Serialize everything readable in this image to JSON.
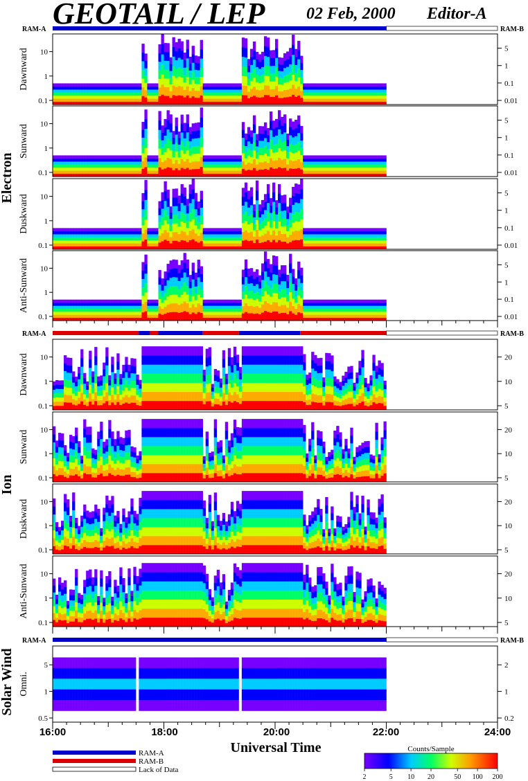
{
  "header": {
    "title": "GEOTAIL / LEP",
    "date": "02 Feb, 2000",
    "editor": "Editor-A"
  },
  "groups": [
    {
      "label": "Electron",
      "ram_left": "RAM-A",
      "ram_right": "RAM-B",
      "ram_segments": [
        {
          "from": 16.0,
          "to": 22.0,
          "mode": "A"
        },
        {
          "from": 22.0,
          "to": 24.0,
          "mode": "none"
        }
      ],
      "panels": [
        {
          "label": "Dawnward",
          "left_ticks": [
            "0.1",
            "1",
            "10"
          ],
          "right_ticks": [
            "0.01",
            "0.1",
            "1",
            "5"
          ]
        },
        {
          "label": "Sunward",
          "left_ticks": [
            "0.1",
            "1",
            "10"
          ],
          "right_ticks": [
            "0.01",
            "0.1",
            "1",
            "5"
          ]
        },
        {
          "label": "Duskward",
          "left_ticks": [
            "0.1",
            "1",
            "10"
          ],
          "right_ticks": [
            "0.01",
            "0.1",
            "1",
            "5"
          ]
        },
        {
          "label": "Anti-Sunward",
          "left_ticks": [
            "0.1",
            "1",
            "10"
          ],
          "right_ticks": [
            "0.01",
            "0.1",
            "1",
            "5"
          ]
        }
      ]
    },
    {
      "label": "Ion",
      "ram_left": "RAM-A",
      "ram_right": "RAM-B",
      "ram_segments": [
        {
          "from": 16.0,
          "to": 17.55,
          "mode": "B"
        },
        {
          "from": 17.55,
          "to": 17.75,
          "mode": "A"
        },
        {
          "from": 17.75,
          "to": 17.9,
          "mode": "B"
        },
        {
          "from": 17.9,
          "to": 18.7,
          "mode": "A"
        },
        {
          "from": 18.7,
          "to": 19.35,
          "mode": "B"
        },
        {
          "from": 19.35,
          "to": 20.45,
          "mode": "A"
        },
        {
          "from": 20.45,
          "to": 22.0,
          "mode": "B"
        },
        {
          "from": 22.0,
          "to": 24.0,
          "mode": "none"
        }
      ],
      "panels": [
        {
          "label": "Dawnward",
          "left_ticks": [
            "0.1",
            "1",
            "10"
          ],
          "right_ticks": [
            "5",
            "10",
            "20"
          ]
        },
        {
          "label": "Sunward",
          "left_ticks": [
            "0.1",
            "1",
            "10"
          ],
          "right_ticks": [
            "5",
            "10",
            "20"
          ]
        },
        {
          "label": "Duskward",
          "left_ticks": [
            "0.1",
            "1",
            "10"
          ],
          "right_ticks": [
            "5",
            "10",
            "20"
          ]
        },
        {
          "label": "Anti-Sunward",
          "left_ticks": [
            "0.1",
            "1",
            "10"
          ],
          "right_ticks": [
            "5",
            "10",
            "20"
          ]
        }
      ]
    },
    {
      "label": "Solar Wind",
      "ram_left": "RAM-A",
      "ram_right": "RAM-B",
      "ram_segments": [
        {
          "from": 16.0,
          "to": 22.0,
          "mode": "A"
        },
        {
          "from": 22.0,
          "to": 24.0,
          "mode": "none"
        }
      ],
      "panels": [
        {
          "label": "Omni.",
          "left_ticks": [
            "0.5",
            "1",
            "5"
          ],
          "right_ticks": [
            "0.2",
            "1",
            "2"
          ]
        }
      ]
    }
  ],
  "chart_data": {
    "type": "heatmap",
    "xlabel": "Universal Time",
    "x_ticks": [
      "16:00",
      "18:00",
      "20:00",
      "22:00",
      "24:00"
    ],
    "xlim": [
      16,
      24
    ],
    "data_end_hour": 22.0,
    "colorbar": {
      "title": "Counts/Sample",
      "ticks": [
        "2",
        "5",
        "10",
        "20",
        "50",
        "100",
        "200"
      ],
      "range": [
        2,
        200
      ]
    },
    "legend": [
      {
        "label": "RAM-A",
        "color": "#0000cc"
      },
      {
        "label": "RAM-B",
        "color": "#dd0000"
      },
      {
        "label": "Lack of Data",
        "color": "#ffffff"
      }
    ]
  }
}
